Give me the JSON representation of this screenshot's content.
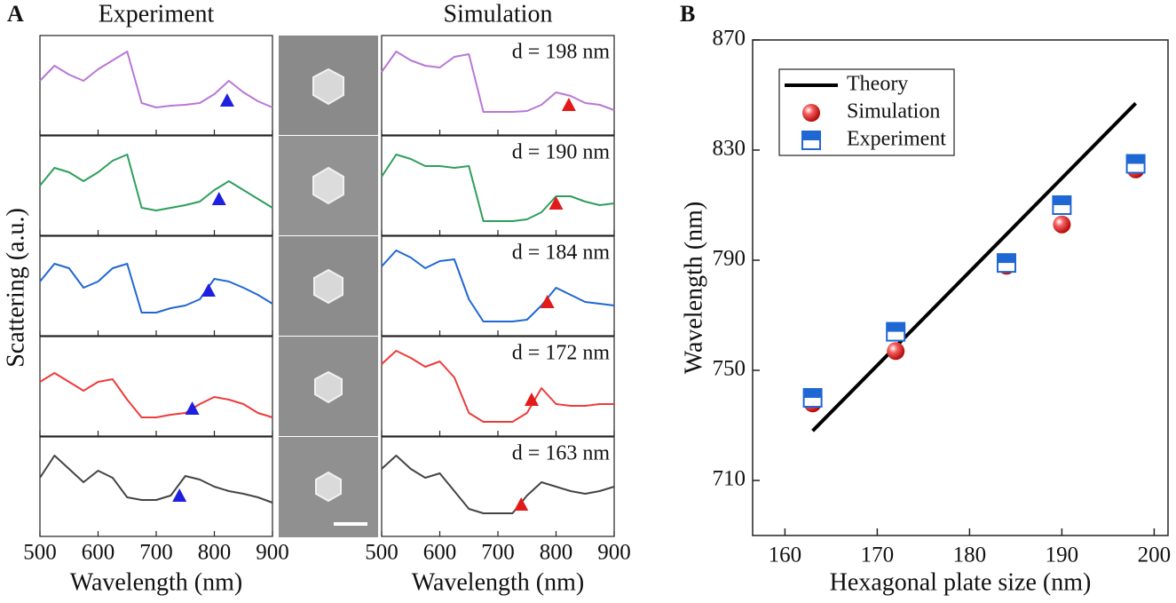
{
  "chart_data": [
    {
      "type": "spectra",
      "panel_label": "A",
      "title": "Experiment",
      "x_label": "Wavelength (nm)",
      "y_label": "Scattering (a.u.)",
      "xlim": [
        500,
        900
      ],
      "xticks": [
        500,
        600,
        700,
        800,
        900
      ],
      "ylim": [
        0,
        1
      ],
      "marker_color": "#1f1fe0",
      "x": [
        500,
        525,
        550,
        575,
        600,
        625,
        650,
        675,
        700,
        725,
        750,
        775,
        800,
        825,
        850,
        875,
        900
      ],
      "series": [
        {
          "color": "#b877d6",
          "values": [
            0.55,
            0.72,
            0.62,
            0.55,
            0.68,
            0.78,
            0.88,
            0.3,
            0.25,
            0.27,
            0.28,
            0.3,
            0.4,
            0.55,
            0.42,
            0.32,
            0.25
          ],
          "marker": {
            "x": 822,
            "y": 0.33
          }
        },
        {
          "color": "#2e9e5b",
          "values": [
            0.5,
            0.7,
            0.65,
            0.55,
            0.65,
            0.78,
            0.85,
            0.25,
            0.22,
            0.25,
            0.28,
            0.32,
            0.45,
            0.55,
            0.45,
            0.35,
            0.25
          ],
          "marker": {
            "x": 808,
            "y": 0.35
          }
        },
        {
          "color": "#1f67d2",
          "values": [
            0.55,
            0.75,
            0.7,
            0.48,
            0.55,
            0.7,
            0.75,
            0.2,
            0.2,
            0.25,
            0.28,
            0.35,
            0.58,
            0.55,
            0.48,
            0.4,
            0.3
          ],
          "marker": {
            "x": 790,
            "y": 0.45
          }
        },
        {
          "color": "#ee3b3b",
          "values": [
            0.55,
            0.65,
            0.55,
            0.45,
            0.55,
            0.58,
            0.35,
            0.15,
            0.15,
            0.18,
            0.2,
            0.3,
            0.38,
            0.35,
            0.3,
            0.2,
            0.15
          ],
          "marker": {
            "x": 762,
            "y": 0.25
          }
        },
        {
          "color": "#444444",
          "values": [
            0.6,
            0.85,
            0.7,
            0.55,
            0.68,
            0.6,
            0.38,
            0.35,
            0.35,
            0.4,
            0.62,
            0.58,
            0.5,
            0.45,
            0.42,
            0.38,
            0.32
          ],
          "marker": {
            "x": 740,
            "y": 0.4
          }
        }
      ]
    },
    {
      "type": "spectra",
      "title": "Simulation",
      "x_label": "Wavelength (nm)",
      "xlim": [
        500,
        900
      ],
      "xticks": [
        500,
        600,
        700,
        800,
        900
      ],
      "ylim": [
        0,
        1
      ],
      "marker_color": "#e31a1a",
      "x": [
        500,
        525,
        550,
        575,
        600,
        625,
        650,
        675,
        700,
        725,
        750,
        775,
        800,
        825,
        850,
        875,
        900
      ],
      "series": [
        {
          "name": "d = 198 nm",
          "color": "#b877d6",
          "values": [
            0.65,
            0.88,
            0.78,
            0.72,
            0.7,
            0.82,
            0.85,
            0.2,
            0.2,
            0.2,
            0.21,
            0.28,
            0.42,
            0.38,
            0.3,
            0.28,
            0.22
          ],
          "marker": {
            "x": 822,
            "y": 0.28
          }
        },
        {
          "name": "d = 190 nm",
          "color": "#2e9e5b",
          "values": [
            0.6,
            0.85,
            0.8,
            0.72,
            0.72,
            0.7,
            0.72,
            0.1,
            0.1,
            0.1,
            0.12,
            0.2,
            0.38,
            0.38,
            0.32,
            0.28,
            0.3
          ],
          "marker": {
            "x": 800,
            "y": 0.3
          }
        },
        {
          "name": "d = 184 nm",
          "color": "#1f67d2",
          "values": [
            0.72,
            0.9,
            0.82,
            0.7,
            0.78,
            0.8,
            0.35,
            0.1,
            0.1,
            0.1,
            0.12,
            0.28,
            0.48,
            0.4,
            0.32,
            0.3,
            0.28
          ],
          "marker": {
            "x": 785,
            "y": 0.32
          }
        },
        {
          "name": "d = 172 nm",
          "color": "#ee3b3b",
          "values": [
            0.75,
            0.9,
            0.82,
            0.72,
            0.78,
            0.6,
            0.2,
            0.1,
            0.1,
            0.1,
            0.2,
            0.48,
            0.3,
            0.28,
            0.28,
            0.3,
            0.3
          ],
          "marker": {
            "x": 758,
            "y": 0.35
          }
        },
        {
          "name": "d = 163 nm",
          "color": "#444444",
          "values": [
            0.7,
            0.85,
            0.7,
            0.6,
            0.65,
            0.45,
            0.25,
            0.2,
            0.2,
            0.2,
            0.4,
            0.55,
            0.5,
            0.45,
            0.42,
            0.45,
            0.5
          ],
          "marker": {
            "x": 740,
            "y": 0.3
          }
        }
      ]
    },
    {
      "type": "scatter",
      "panel_label": "B",
      "x_label": "Hexagonal plate size (nm)",
      "y_label": "Wavelength (nm)",
      "xlim": [
        156.5,
        201.5
      ],
      "xticks": [
        160,
        170,
        180,
        190,
        200
      ],
      "ylim": [
        690,
        870
      ],
      "yticks": [
        710,
        750,
        790,
        830,
        870
      ],
      "series": [
        {
          "name": "Theory",
          "style": "line",
          "color": "#000000",
          "x": [
            163,
            198
          ],
          "values": [
            728,
            847
          ]
        },
        {
          "name": "Simulation",
          "style": "sphere",
          "color": "#e31a1a",
          "x": [
            163,
            172,
            184,
            190,
            198
          ],
          "values": [
            738,
            757,
            788,
            803,
            823
          ]
        },
        {
          "name": "Experiment",
          "style": "half-square",
          "color": "#1f67d2",
          "x": [
            163,
            172,
            184,
            190,
            198
          ],
          "values": [
            740,
            764,
            789,
            810,
            825
          ]
        }
      ]
    }
  ]
}
